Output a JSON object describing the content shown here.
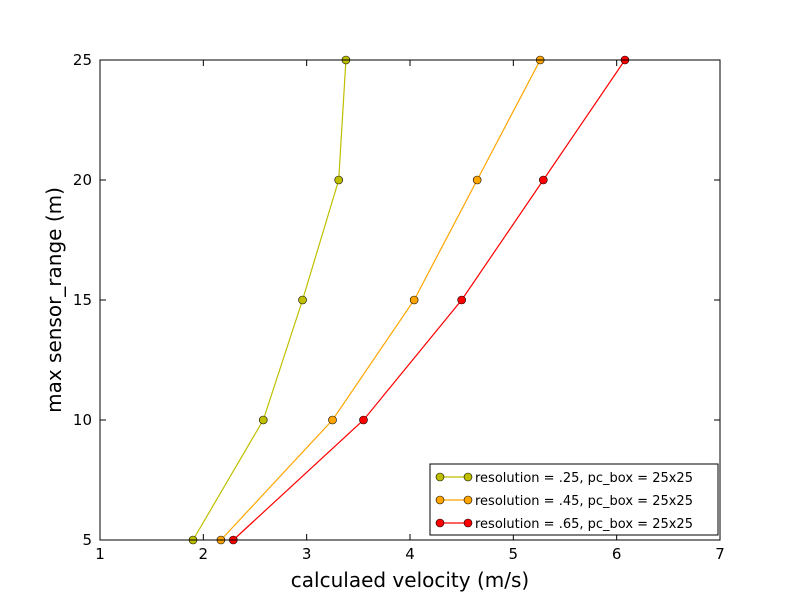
{
  "chart_data": {
    "type": "line",
    "xlabel": "calculaed velocity (m/s)",
    "ylabel": "max sensor_range (m)",
    "xlim": [
      1,
      7
    ],
    "ylim": [
      5,
      25
    ],
    "xticks": [
      1,
      2,
      3,
      4,
      5,
      6,
      7
    ],
    "yticks": [
      5,
      10,
      15,
      20,
      25
    ],
    "grid": false,
    "legend_position": "lower-right",
    "series": [
      {
        "name": "resolution = .25, pc_box = 25x25",
        "color": "#bfbf00",
        "marker": "circle",
        "x": [
          1.9,
          2.58,
          2.96,
          3.31,
          3.38
        ],
        "y": [
          5,
          10,
          15,
          20,
          25
        ]
      },
      {
        "name": "resolution = .45, pc_box = 25x25",
        "color": "#ffa500",
        "marker": "circle",
        "x": [
          2.17,
          3.25,
          4.04,
          4.65,
          5.26
        ],
        "y": [
          5,
          10,
          15,
          20,
          25
        ]
      },
      {
        "name": "resolution = .65, pc_box = 25x25",
        "color": "#ff0000",
        "marker": "circle",
        "x": [
          2.29,
          3.55,
          4.5,
          5.29,
          6.08
        ],
        "y": [
          5,
          10,
          15,
          20,
          25
        ]
      }
    ]
  }
}
